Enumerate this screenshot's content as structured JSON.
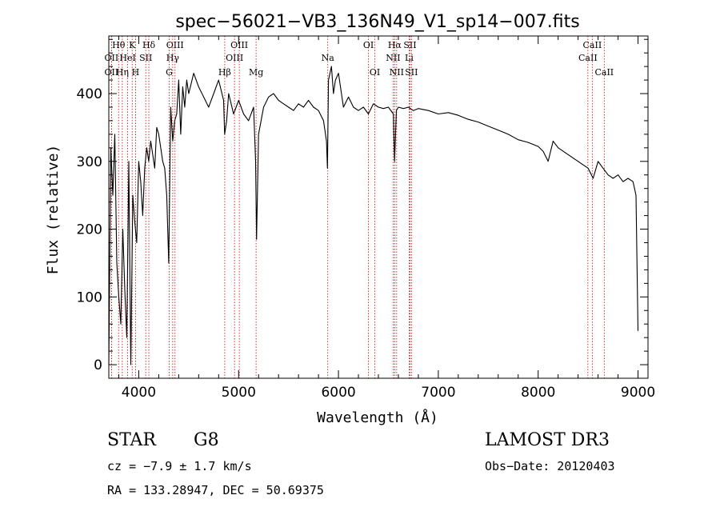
{
  "chart_data": {
    "type": "line",
    "title": "spec−56021−VB3_136N49_V1_sp14−007.fits",
    "xlabel": "Wavelength (Å)",
    "ylabel": "Flux (relative)",
    "xlim": [
      3700,
      9100
    ],
    "ylim": [
      -20,
      485
    ],
    "x_ticks": [
      4000,
      5000,
      6000,
      7000,
      8000,
      9000
    ],
    "y_ticks": [
      0,
      100,
      200,
      300,
      400
    ],
    "series": [
      {
        "name": "spectrum",
        "x": [
          3700,
          3720,
          3740,
          3760,
          3780,
          3800,
          3820,
          3840,
          3860,
          3880,
          3900,
          3920,
          3940,
          3960,
          3980,
          4000,
          4020,
          4040,
          4060,
          4080,
          4100,
          4120,
          4140,
          4160,
          4180,
          4200,
          4220,
          4240,
          4260,
          4280,
          4300,
          4320,
          4340,
          4360,
          4380,
          4400,
          4420,
          4440,
          4460,
          4480,
          4500,
          4550,
          4600,
          4650,
          4700,
          4750,
          4800,
          4850,
          4860,
          4880,
          4900,
          4950,
          5000,
          5050,
          5100,
          5150,
          5170,
          5180,
          5200,
          5250,
          5300,
          5350,
          5400,
          5450,
          5500,
          5550,
          5600,
          5650,
          5700,
          5750,
          5800,
          5850,
          5880,
          5890,
          5900,
          5930,
          5950,
          5970,
          6000,
          6050,
          6100,
          6150,
          6200,
          6250,
          6300,
          6350,
          6400,
          6450,
          6500,
          6550,
          6562,
          6580,
          6600,
          6650,
          6700,
          6750,
          6800,
          6900,
          7000,
          7100,
          7200,
          7300,
          7400,
          7500,
          7600,
          7700,
          7800,
          7900,
          8000,
          8050,
          8100,
          8150,
          8200,
          8300,
          8400,
          8500,
          8550,
          8600,
          8650,
          8700,
          8750,
          8800,
          8850,
          8900,
          8950,
          8980,
          9000
        ],
        "values": [
          0,
          320,
          250,
          340,
          150,
          100,
          60,
          200,
          110,
          40,
          300,
          0,
          250,
          210,
          180,
          300,
          270,
          220,
          290,
          320,
          300,
          330,
          310,
          290,
          350,
          340,
          320,
          300,
          290,
          250,
          150,
          380,
          330,
          360,
          370,
          420,
          340,
          410,
          380,
          420,
          400,
          430,
          410,
          395,
          380,
          400,
          420,
          390,
          340,
          360,
          400,
          370,
          390,
          370,
          360,
          380,
          300,
          185,
          340,
          380,
          395,
          400,
          390,
          385,
          380,
          375,
          385,
          380,
          390,
          380,
          375,
          360,
          330,
          290,
          420,
          440,
          400,
          420,
          430,
          380,
          395,
          380,
          375,
          380,
          370,
          385,
          380,
          378,
          380,
          370,
          300,
          375,
          380,
          378,
          380,
          375,
          378,
          375,
          370,
          372,
          368,
          362,
          358,
          352,
          346,
          340,
          332,
          328,
          322,
          315,
          300,
          330,
          320,
          310,
          300,
          290,
          275,
          300,
          290,
          280,
          275,
          280,
          270,
          275,
          270,
          250,
          50
        ]
      }
    ],
    "line_markers": [
      {
        "label": "Hθ",
        "x": 3798,
        "row": 1
      },
      {
        "label": "OII",
        "x": 3727,
        "row": 2
      },
      {
        "label": "OII",
        "x": 3727,
        "row": 3
      },
      {
        "label": "K",
        "x": 3934,
        "row": 1
      },
      {
        "label": "HeI",
        "x": 3889,
        "row": 2
      },
      {
        "label": "Hη",
        "x": 3835,
        "row": 3
      },
      {
        "label": "Hδ",
        "x": 4101,
        "row": 1
      },
      {
        "label": "SII",
        "x": 4070,
        "row": 2
      },
      {
        "label": "H",
        "x": 3968,
        "row": 3
      },
      {
        "label": "OIII",
        "x": 4363,
        "row": 1
      },
      {
        "label": "Hγ",
        "x": 4340,
        "row": 2
      },
      {
        "label": "G",
        "x": 4305,
        "row": 3
      },
      {
        "label": "OIII",
        "x": 5007,
        "row": 1
      },
      {
        "label": "OIII",
        "x": 4959,
        "row": 2
      },
      {
        "label": "Hβ",
        "x": 4861,
        "row": 3
      },
      {
        "label": "Mg",
        "x": 5175,
        "row": 3
      },
      {
        "label": "Na",
        "x": 5893,
        "row": 2
      },
      {
        "label": "OI",
        "x": 6300,
        "row": 1
      },
      {
        "label": "OI",
        "x": 6364,
        "row": 3
      },
      {
        "label": "Hα",
        "x": 6563,
        "row": 1
      },
      {
        "label": "SII",
        "x": 6716,
        "row": 1
      },
      {
        "label": "NII",
        "x": 6548,
        "row": 2
      },
      {
        "label": "Li",
        "x": 6708,
        "row": 2
      },
      {
        "label": "NII",
        "x": 6583,
        "row": 3
      },
      {
        "label": "SII",
        "x": 6731,
        "row": 3
      },
      {
        "label": "CaII",
        "x": 8542,
        "row": 1
      },
      {
        "label": "CaII",
        "x": 8498,
        "row": 2
      },
      {
        "label": "CaII",
        "x": 8662,
        "row": 3
      }
    ],
    "grid": false,
    "colors": {
      "spectrum": "#000000",
      "markers": "#cc0000"
    }
  },
  "info": {
    "object_class": "STAR",
    "subclass": "G8",
    "survey": "LAMOST DR3",
    "redshift": "cz = −7.9 ± 1.7 km/s",
    "obs_date": "Obs−Date: 20120403",
    "coords": "RA = 133.28947, DEC =  50.69375"
  }
}
